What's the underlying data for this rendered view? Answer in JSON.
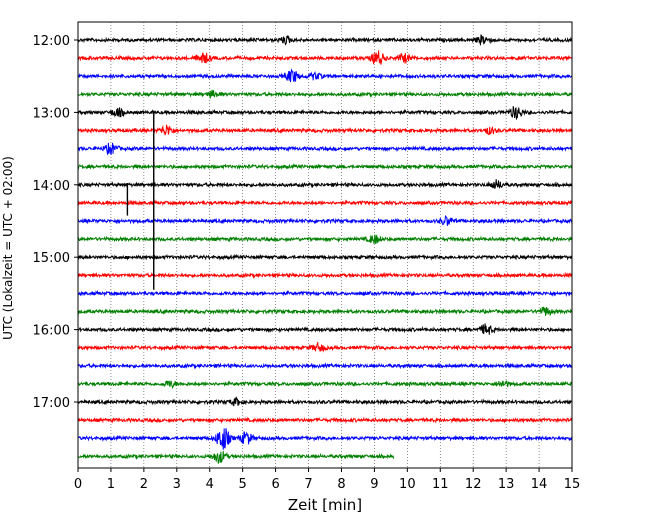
{
  "chart_data": {
    "type": "line",
    "title": "",
    "xlabel": "Zeit  [min]",
    "ylabel": "UTC (Lokalzeit = UTC + 02:00)",
    "xlim": [
      0,
      15
    ],
    "x_ticks": [
      0,
      1,
      2,
      3,
      4,
      5,
      6,
      7,
      8,
      9,
      10,
      11,
      12,
      13,
      14,
      15
    ],
    "row_interval_min": 15,
    "y_ticks": [
      {
        "label": "12:00",
        "row": 0
      },
      {
        "label": "13:00",
        "row": 4
      },
      {
        "label": "14:00",
        "row": 8
      },
      {
        "label": "15:00",
        "row": 12
      },
      {
        "label": "16:00",
        "row": 16
      },
      {
        "label": "17:00",
        "row": 20
      }
    ],
    "grid": {
      "x": true,
      "style": "dotted"
    },
    "trace_colors": [
      "#000000",
      "#ff0000",
      "#0000ff",
      "#008000"
    ],
    "rows": [
      {
        "start": "12:00",
        "color": "#000000",
        "end_min": 15,
        "events": [
          {
            "t": 6.3,
            "a": 3
          },
          {
            "t": 12.3,
            "a": 4
          }
        ]
      },
      {
        "start": "12:15",
        "color": "#ff0000",
        "end_min": 15,
        "events": [
          {
            "t": 3.8,
            "a": 5
          },
          {
            "t": 9.1,
            "a": 7
          },
          {
            "t": 9.9,
            "a": 4
          }
        ]
      },
      {
        "start": "12:30",
        "color": "#0000ff",
        "end_min": 15,
        "events": [
          {
            "t": 6.5,
            "a": 6
          },
          {
            "t": 7.2,
            "a": 3
          }
        ]
      },
      {
        "start": "12:45",
        "color": "#008000",
        "end_min": 15,
        "events": [
          {
            "t": 4.1,
            "a": 3
          }
        ]
      },
      {
        "start": "13:00",
        "color": "#000000",
        "end_min": 15,
        "events": [
          {
            "t": 1.2,
            "a": 4
          },
          {
            "t": 13.3,
            "a": 6
          }
        ]
      },
      {
        "start": "13:15",
        "color": "#ff0000",
        "end_min": 15,
        "events": [
          {
            "t": 2.7,
            "a": 5
          },
          {
            "t": 12.5,
            "a": 3
          }
        ]
      },
      {
        "start": "13:30",
        "color": "#0000ff",
        "end_min": 15,
        "events": [
          {
            "t": 1.0,
            "a": 5
          }
        ]
      },
      {
        "start": "13:45",
        "color": "#008000",
        "end_min": 15,
        "events": []
      },
      {
        "start": "14:00",
        "color": "#000000",
        "end_min": 15,
        "events": [
          {
            "t": 12.7,
            "a": 4
          }
        ]
      },
      {
        "start": "14:15",
        "color": "#ff0000",
        "end_min": 15,
        "events": []
      },
      {
        "start": "14:30",
        "color": "#0000ff",
        "end_min": 15,
        "events": [
          {
            "t": 11.2,
            "a": 4
          }
        ]
      },
      {
        "start": "14:45",
        "color": "#008000",
        "end_min": 15,
        "events": [
          {
            "t": 9.0,
            "a": 4
          }
        ]
      },
      {
        "start": "15:00",
        "color": "#000000",
        "end_min": 15,
        "events": []
      },
      {
        "start": "15:15",
        "color": "#ff0000",
        "end_min": 15,
        "events": []
      },
      {
        "start": "15:30",
        "color": "#0000ff",
        "end_min": 15,
        "events": []
      },
      {
        "start": "15:45",
        "color": "#008000",
        "end_min": 15,
        "events": [
          {
            "t": 14.2,
            "a": 4
          }
        ]
      },
      {
        "start": "16:00",
        "color": "#000000",
        "end_min": 15,
        "events": [
          {
            "t": 12.4,
            "a": 5
          }
        ]
      },
      {
        "start": "16:15",
        "color": "#ff0000",
        "end_min": 15,
        "events": [
          {
            "t": 7.3,
            "a": 4
          }
        ]
      },
      {
        "start": "16:30",
        "color": "#0000ff",
        "end_min": 15,
        "events": []
      },
      {
        "start": "16:45",
        "color": "#008000",
        "end_min": 15,
        "events": [
          {
            "t": 2.8,
            "a": 3
          },
          {
            "t": 12.9,
            "a": 3
          }
        ]
      },
      {
        "start": "17:00",
        "color": "#000000",
        "end_min": 15,
        "events": [
          {
            "t": 4.8,
            "a": 3
          }
        ]
      },
      {
        "start": "17:15",
        "color": "#ff0000",
        "end_min": 15,
        "events": []
      },
      {
        "start": "17:30",
        "color": "#0000ff",
        "end_min": 15,
        "events": [
          {
            "t": 4.4,
            "a": 12
          },
          {
            "t": 5.1,
            "a": 6
          }
        ]
      },
      {
        "start": "17:45",
        "color": "#008000",
        "end_min": 9.6,
        "events": [
          {
            "t": 4.3,
            "a": 6
          }
        ]
      }
    ],
    "spikes": [
      {
        "t": 2.3,
        "row_from": 4,
        "row_to": 13.8,
        "color": "#000000"
      },
      {
        "t": 1.5,
        "row_from": 7.9,
        "row_to": 9.7,
        "color": "#000000"
      }
    ]
  }
}
